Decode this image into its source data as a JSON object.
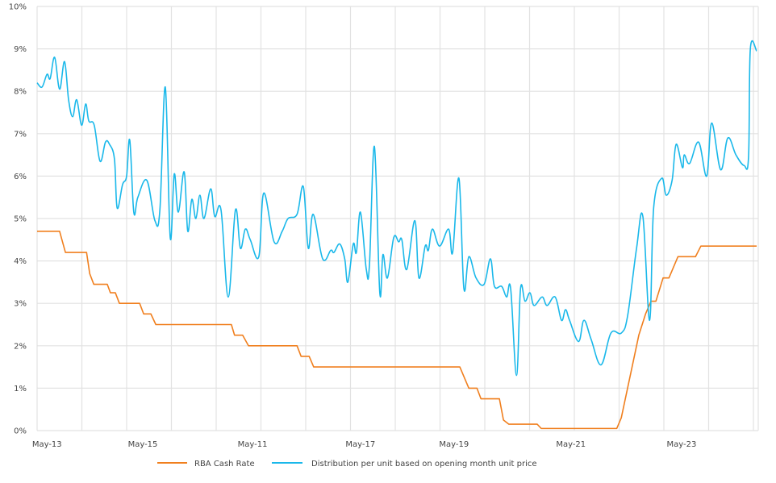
{
  "chart_data": {
    "type": "line",
    "title": "",
    "xlabel": "",
    "ylabel": "",
    "ylim": [
      0,
      10
    ],
    "y_ticks": [
      "0%",
      "1%",
      "2%",
      "3%",
      "4%",
      "5%",
      "6%",
      "7%",
      "8%",
      "9%",
      "10%"
    ],
    "x_range": [
      0,
      160
    ],
    "x_tick_labels": [
      {
        "label": "May-13",
        "at": 2.2
      },
      {
        "label": "May-15",
        "at": 23.5
      },
      {
        "label": "May-11",
        "at": 47.9
      },
      {
        "label": "May-17",
        "at": 71.9
      },
      {
        "label": "May-19",
        "at": 92.7
      },
      {
        "label": "May-21",
        "at": 118.7
      },
      {
        "label": "May-23",
        "at": 143.3
      }
    ],
    "grid": true,
    "legend_position": "bottom",
    "series": [
      {
        "name": "RBA Cash Rate",
        "color": "#f07f1e",
        "points": [
          [
            0,
            4.7
          ],
          [
            5.0,
            4.7
          ],
          [
            6.3,
            4.2
          ],
          [
            11.0,
            4.2
          ],
          [
            11.7,
            3.7
          ],
          [
            12.6,
            3.45
          ],
          [
            15.6,
            3.45
          ],
          [
            16.3,
            3.25
          ],
          [
            17.4,
            3.25
          ],
          [
            18.3,
            3.0
          ],
          [
            22.8,
            3.0
          ],
          [
            23.7,
            2.75
          ],
          [
            25.3,
            2.75
          ],
          [
            26.4,
            2.5
          ],
          [
            43.2,
            2.5
          ],
          [
            43.9,
            2.25
          ],
          [
            45.7,
            2.25
          ],
          [
            47.0,
            2.0
          ],
          [
            57.8,
            2.0
          ],
          [
            58.7,
            1.75
          ],
          [
            60.5,
            1.75
          ],
          [
            61.5,
            1.5
          ],
          [
            94.0,
            1.5
          ],
          [
            96.0,
            1.0
          ],
          [
            97.8,
            1.0
          ],
          [
            98.7,
            0.75
          ],
          [
            102.8,
            0.75
          ],
          [
            103.7,
            0.25
          ],
          [
            104.9,
            0.15
          ],
          [
            111.2,
            0.15
          ],
          [
            112.1,
            0.05
          ],
          [
            128.9,
            0.05
          ],
          [
            129.9,
            0.3
          ],
          [
            133.8,
            2.25
          ],
          [
            135.3,
            2.75
          ],
          [
            136.5,
            3.05
          ],
          [
            137.6,
            3.05
          ],
          [
            139.2,
            3.6
          ],
          [
            140.5,
            3.6
          ],
          [
            142.5,
            4.1
          ],
          [
            146.4,
            4.1
          ],
          [
            147.6,
            4.35
          ],
          [
            160,
            4.35
          ]
        ]
      },
      {
        "name": "Distribution per unit based on opening month unit price",
        "color": "#1ab8ea",
        "points": [
          [
            0,
            8.2
          ],
          [
            1.1,
            8.1
          ],
          [
            2.2,
            8.4
          ],
          [
            2.9,
            8.3
          ],
          [
            3.9,
            8.8
          ],
          [
            5.0,
            8.05
          ],
          [
            6.1,
            8.7
          ],
          [
            7.0,
            7.8
          ],
          [
            7.9,
            7.4
          ],
          [
            8.8,
            7.8
          ],
          [
            9.9,
            7.2
          ],
          [
            10.8,
            7.7
          ],
          [
            11.5,
            7.3
          ],
          [
            12.7,
            7.2
          ],
          [
            14.0,
            6.35
          ],
          [
            15.2,
            6.8
          ],
          [
            16.1,
            6.75
          ],
          [
            17.2,
            6.4
          ],
          [
            17.8,
            5.25
          ],
          [
            19.0,
            5.8
          ],
          [
            19.9,
            6.0
          ],
          [
            20.6,
            6.85
          ],
          [
            21.5,
            5.15
          ],
          [
            22.4,
            5.5
          ],
          [
            24.4,
            5.9
          ],
          [
            26.2,
            4.95
          ],
          [
            27.3,
            5.2
          ],
          [
            28.5,
            8.1
          ],
          [
            29.6,
            4.55
          ],
          [
            30.5,
            6.05
          ],
          [
            31.4,
            5.15
          ],
          [
            32.7,
            6.1
          ],
          [
            33.5,
            4.7
          ],
          [
            34.4,
            5.45
          ],
          [
            35.3,
            5.0
          ],
          [
            36.2,
            5.55
          ],
          [
            37.1,
            5.0
          ],
          [
            38.6,
            5.7
          ],
          [
            39.5,
            5.05
          ],
          [
            40.9,
            5.2
          ],
          [
            42.5,
            3.15
          ],
          [
            44.1,
            5.2
          ],
          [
            45.2,
            4.3
          ],
          [
            46.3,
            4.75
          ],
          [
            47.4,
            4.5
          ],
          [
            49.3,
            4.1
          ],
          [
            50.4,
            5.6
          ],
          [
            52.7,
            4.45
          ],
          [
            54.5,
            4.7
          ],
          [
            55.8,
            5.0
          ],
          [
            57.8,
            5.1
          ],
          [
            59.2,
            5.75
          ],
          [
            60.3,
            4.3
          ],
          [
            61.4,
            5.1
          ],
          [
            63.5,
            4.05
          ],
          [
            65.3,
            4.25
          ],
          [
            66.0,
            4.2
          ],
          [
            67.3,
            4.4
          ],
          [
            68.4,
            4.05
          ],
          [
            69.1,
            3.5
          ],
          [
            70.3,
            4.4
          ],
          [
            71.0,
            4.2
          ],
          [
            71.9,
            5.15
          ],
          [
            73.2,
            3.8
          ],
          [
            73.9,
            3.9
          ],
          [
            75.0,
            6.7
          ],
          [
            76.2,
            3.25
          ],
          [
            76.9,
            4.15
          ],
          [
            77.9,
            3.6
          ],
          [
            79.3,
            4.55
          ],
          [
            80.4,
            4.45
          ],
          [
            81.1,
            4.5
          ],
          [
            82.2,
            3.8
          ],
          [
            84.0,
            4.95
          ],
          [
            84.9,
            3.6
          ],
          [
            86.3,
            4.35
          ],
          [
            87.0,
            4.25
          ],
          [
            87.9,
            4.75
          ],
          [
            89.5,
            4.35
          ],
          [
            91.5,
            4.75
          ],
          [
            92.4,
            4.2
          ],
          [
            93.8,
            5.95
          ],
          [
            94.9,
            3.35
          ],
          [
            96.0,
            4.1
          ],
          [
            97.6,
            3.6
          ],
          [
            99.4,
            3.45
          ],
          [
            100.8,
            4.05
          ],
          [
            101.7,
            3.4
          ],
          [
            103.3,
            3.4
          ],
          [
            104.4,
            3.15
          ],
          [
            105.3,
            3.35
          ],
          [
            106.6,
            1.3
          ],
          [
            107.5,
            3.35
          ],
          [
            108.5,
            3.05
          ],
          [
            109.6,
            3.25
          ],
          [
            110.5,
            2.95
          ],
          [
            112.3,
            3.15
          ],
          [
            113.4,
            2.95
          ],
          [
            115.2,
            3.15
          ],
          [
            116.6,
            2.6
          ],
          [
            117.5,
            2.85
          ],
          [
            118.4,
            2.6
          ],
          [
            120.4,
            2.1
          ],
          [
            121.6,
            2.6
          ],
          [
            123.2,
            2.15
          ],
          [
            125.4,
            1.55
          ],
          [
            127.6,
            2.3
          ],
          [
            129.9,
            2.3
          ],
          [
            131.3,
            2.7
          ],
          [
            133.3,
            4.3
          ],
          [
            134.7,
            5.05
          ],
          [
            136.2,
            2.6
          ],
          [
            137.1,
            5.25
          ],
          [
            138.9,
            5.95
          ],
          [
            139.9,
            5.55
          ],
          [
            141.2,
            5.9
          ],
          [
            142.1,
            6.75
          ],
          [
            143.5,
            6.2
          ],
          [
            143.9,
            6.5
          ],
          [
            145.1,
            6.3
          ],
          [
            147.1,
            6.8
          ],
          [
            148.9,
            6.0
          ],
          [
            150.0,
            7.25
          ],
          [
            152.0,
            6.15
          ],
          [
            153.6,
            6.9
          ],
          [
            155.4,
            6.5
          ],
          [
            157.2,
            6.25
          ],
          [
            158.2,
            6.45
          ],
          [
            158.6,
            9.0
          ],
          [
            160,
            8.95
          ]
        ]
      }
    ]
  },
  "legend": {
    "items": [
      {
        "label": "RBA Cash Rate",
        "color": "#f07f1e"
      },
      {
        "label": "Distribution per unit based on opening month unit price",
        "color": "#1ab8ea"
      }
    ]
  }
}
